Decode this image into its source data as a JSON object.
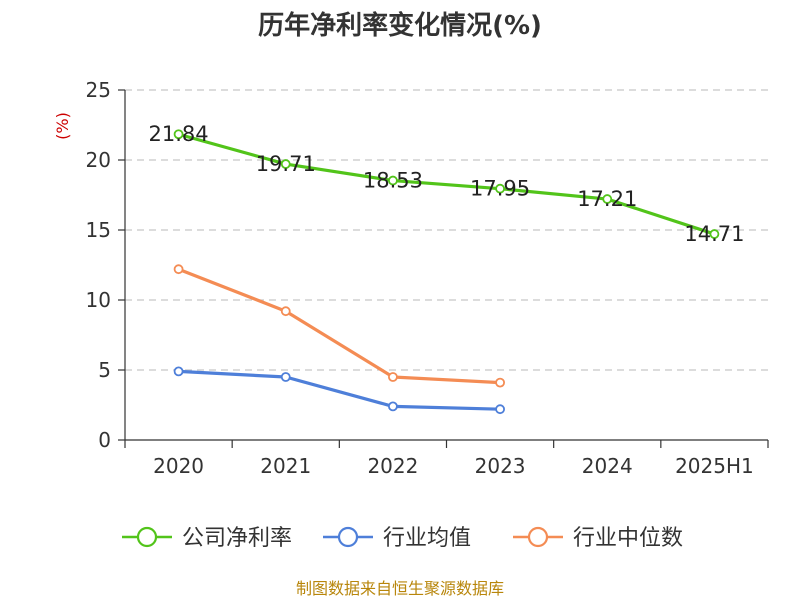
{
  "chart_data": {
    "type": "line",
    "title": "历年净利率变化情况(%)",
    "ylabel": "(%)",
    "xlabel": "",
    "categories": [
      "2020",
      "2021",
      "2022",
      "2023",
      "2024",
      "2025H1"
    ],
    "ylim": [
      0,
      25
    ],
    "yticks": [
      0,
      5,
      10,
      15,
      20,
      25
    ],
    "grid": true,
    "legend_position": "bottom",
    "series": [
      {
        "name": "公司净利率",
        "color": "#52c41a",
        "values": [
          21.84,
          19.71,
          18.53,
          17.95,
          17.21,
          14.71
        ],
        "labels": [
          "21.84",
          "19.71",
          "18.53",
          "17.95",
          "17.21",
          "14.71"
        ]
      },
      {
        "name": "行业均值",
        "color": "#4e7fd9",
        "values": [
          4.9,
          4.5,
          2.4,
          2.2,
          null,
          null
        ]
      },
      {
        "name": "行业中位数",
        "color": "#f48c54",
        "values": [
          12.2,
          9.2,
          4.5,
          4.1,
          null,
          null
        ]
      }
    ],
    "source": "制图数据来自恒生聚源数据库"
  }
}
